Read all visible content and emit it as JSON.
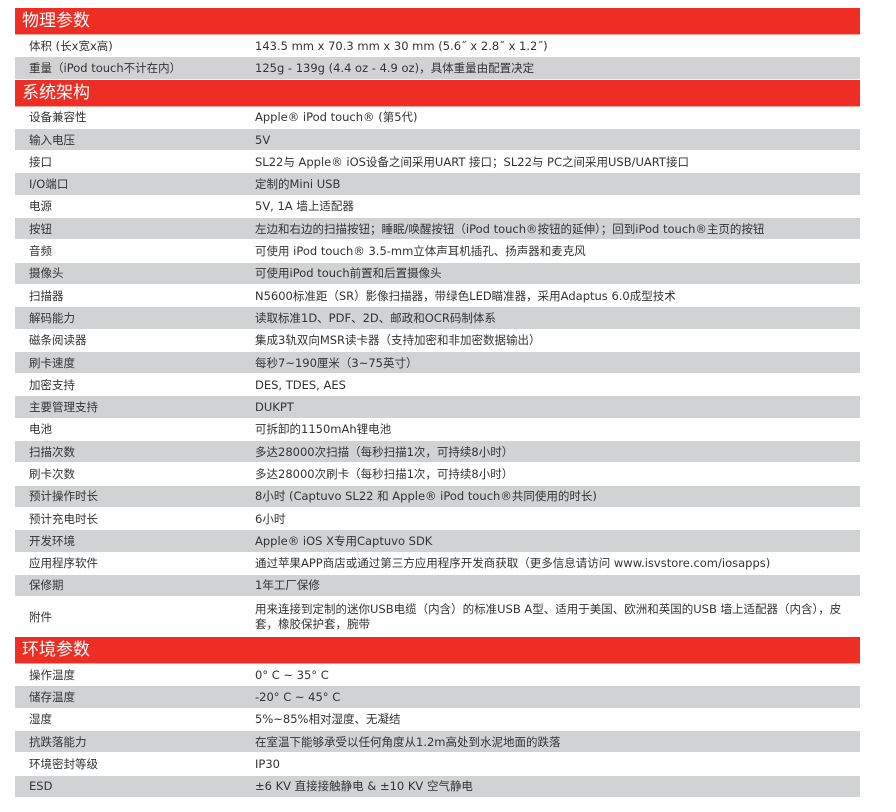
{
  "sections": [
    {
      "title": "物理参数",
      "rows": [
        {
          "label": "体积 (长x宽x高)",
          "value": "143.5 mm x 70.3 mm x 30 mm (5.6˝ x 2.8˝ x 1.2˝)"
        },
        {
          "label": "重量（iPod touch不计在内）",
          "value": "125g - 139g (4.4 oz - 4.9 oz)，具体重量由配置决定"
        }
      ]
    },
    {
      "title": "系统架构",
      "rows": [
        {
          "label": "设备兼容性",
          "value": "Apple® iPod touch® (第5代)"
        },
        {
          "label": "输入电压",
          "value": "5V"
        },
        {
          "label": "接口",
          "value": "SL22与 Apple® iOS设备之间采用UART 接口；SL22与 PC之间采用USB/UART接口"
        },
        {
          "label": "I/O端口",
          "value": "定制的Mini USB"
        },
        {
          "label": "电源",
          "value": "5V, 1A 墙上适配器"
        },
        {
          "label": "按钮",
          "value": "左边和右边的扫描按钮；睡眠/唤醒按钮（iPod touch®按钮的延伸）；回到iPod touch®主页的按钮"
        },
        {
          "label": "音频",
          "value": "可使用 iPod touch® 3.5-mm立体声耳机插孔、扬声器和麦克风"
        },
        {
          "label": "摄像头",
          "value": "可使用iPod touch前置和后置摄像头"
        },
        {
          "label": "扫描器",
          "value": "N5600标准距（SR）影像扫描器，带绿色LED瞄准器，采用Adaptus 6.0成型技术"
        },
        {
          "label": "解码能力",
          "value": "读取标准1D、PDF、2D、邮政和OCR码制体系"
        },
        {
          "label": "磁条阅读器",
          "value": "集成3轨双向MSR读卡器（支持加密和非加密数据输出）"
        },
        {
          "label": "刷卡速度",
          "value": "每秒7~190厘米（3~75英寸）"
        },
        {
          "label": "加密支持",
          "value": "DES, TDES, AES"
        },
        {
          "label": "主要管理支持",
          "value": "DUKPT"
        },
        {
          "label": "电池",
          "value": "可拆卸的1150mAh锂电池"
        },
        {
          "label": "扫描次数",
          "value": "多达28000次扫描（每秒扫描1次，可持续8小时）"
        },
        {
          "label": "刷卡次数",
          "value": "多达28000次刷卡（每秒扫描1次，可持续8小时）"
        },
        {
          "label": "预计操作时长",
          "value": "8小时 (Captuvo SL22 和 Apple® iPod touch®共同使用的时长)"
        },
        {
          "label": "预计充电时长",
          "value": "6小时"
        },
        {
          "label": "开发环境",
          "value": "Apple® iOS X专用Captuvo SDK"
        },
        {
          "label": "应用程序软件",
          "value": "通过苹果APP商店或通过第三方应用程序开发商获取（更多信息请访问 www.isvstore.com/iosapps)"
        },
        {
          "label": "保修期",
          "value": "1年工厂保修"
        },
        {
          "label": "附件",
          "value": "用来连接到定制的迷你USB电缆（内含）的标准USB A型、适用于美国、欧洲和英国的USB 墙上适配器（内含），皮套，橡胶保护套，腕带"
        }
      ]
    },
    {
      "title": "环境参数",
      "rows": [
        {
          "label": "操作温度",
          "value": "0° C ~ 35° C"
        },
        {
          "label": "储存温度",
          "value": "-20° C ~ 45° C"
        },
        {
          "label": "湿度",
          "value": "5%~85%相对湿度、无凝结"
        },
        {
          "label": "抗跌落能力",
          "value": "在室温下能够承受以任何角度从1.2m高处到水泥地面的跌落"
        },
        {
          "label": "环境密封等级",
          "value": "IP30"
        },
        {
          "label": "ESD",
          "value": "±6 KV 直接接触静电 & ±10 KV 空气静电"
        }
      ]
    }
  ],
  "colors": {
    "header": "#ee2e24",
    "stripe": "#d1d2d4"
  }
}
